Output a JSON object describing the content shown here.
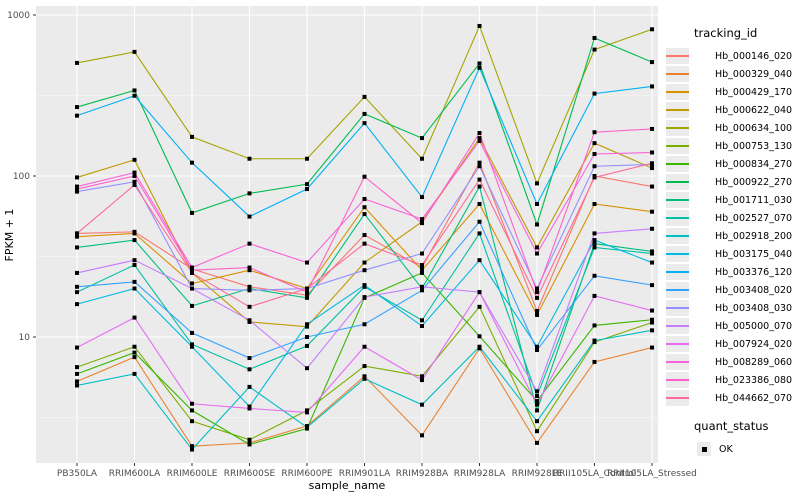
{
  "style": {
    "figure_bg": "#ffffff",
    "panel_bg": "#ebebeb",
    "grid_major_color": "#ffffff",
    "grid_minor_color": "#f7f7f7",
    "axis_text_color": "#4d4d4d",
    "axis_title_color": "#000000",
    "tick_mark_color": "#333333",
    "point_color": "#000000",
    "legend_key_bg": "#ebebeb"
  },
  "axes": {
    "x_title": "sample_name",
    "y_title": "FPKM + 1",
    "y_tick_labels": [
      "10",
      "100",
      "1000"
    ],
    "y_tick_values": [
      10,
      100,
      1000
    ],
    "y_minor_values": [
      3.162,
      31.62,
      316.2
    ],
    "y_scale": "log10"
  },
  "legend": {
    "tracking_title": "tracking_id",
    "quant_title": "quant_status",
    "quant_items": [
      {
        "label": "OK"
      }
    ]
  },
  "chart_data": {
    "type": "line",
    "title": "",
    "xlabel": "sample_name",
    "ylabel": "FPKM + 1",
    "y_scale": "log10",
    "ylim": [
      1.65,
      1140
    ],
    "grid": true,
    "legend_position": "right",
    "marker": "black-square",
    "x_categories": [
      "PB350LA",
      "RRIM600LA",
      "RRIM600LE",
      "RRIM600SE",
      "RRIM600PE",
      "RRIM901LA",
      "RRIM928BA",
      "RRIM928LA",
      "RRIM928LE",
      "RRII105LA_Control",
      "RRII105LA_Stressed"
    ],
    "series": [
      {
        "name": "Hb_000146_020",
        "color": "#F8766D",
        "values": [
          44,
          45,
          26.5,
          20.5,
          18.2,
          43,
          27,
          121,
          14.5,
          100,
          86
        ]
      },
      {
        "name": "Hb_000329_040",
        "color": "#EA8331",
        "values": [
          5.3,
          7.5,
          2.1,
          2.2,
          2.8,
          5.7,
          2.45,
          8.5,
          2.2,
          7.0,
          8.6
        ]
      },
      {
        "name": "Hb_000429_170",
        "color": "#D89000",
        "values": [
          42,
          44,
          21.5,
          26,
          20,
          64,
          26,
          67,
          13.7,
          67,
          60
        ]
      },
      {
        "name": "Hb_000622_040",
        "color": "#C09B00",
        "values": [
          98,
          126,
          25,
          12.4,
          11.6,
          29,
          52,
          172,
          36,
          160,
          112
        ]
      },
      {
        "name": "Hb_000634_100",
        "color": "#A3A500",
        "values": [
          504,
          590,
          175,
          128,
          128,
          310,
          128,
          855,
          90,
          610,
          815
        ]
      },
      {
        "name": "Hb_000753_130",
        "color": "#7CAE00",
        "values": [
          6.5,
          8.7,
          3.0,
          2.3,
          3.5,
          6.6,
          5.7,
          15.4,
          2.6,
          9.3,
          12.3
        ]
      },
      {
        "name": "Hb_000834_270",
        "color": "#39B600",
        "values": [
          5.9,
          8.0,
          3.5,
          2.15,
          2.7,
          17.5,
          25,
          10.1,
          4.0,
          11.8,
          12.8
        ]
      },
      {
        "name": "Hb_000922_270",
        "color": "#00BB4E",
        "values": [
          268,
          340,
          59,
          78,
          89,
          243,
          172,
          500,
          50,
          720,
          510
        ]
      },
      {
        "name": "Hb_001711_030",
        "color": "#00BF7D",
        "values": [
          36,
          40,
          15.6,
          20,
          17.5,
          58,
          20,
          86,
          3.5,
          38,
          34
        ]
      },
      {
        "name": "Hb_002527_070",
        "color": "#00C1A3",
        "values": [
          19,
          28,
          9,
          6.3,
          8.8,
          20.5,
          12.7,
          44,
          4.3,
          36,
          33
        ]
      },
      {
        "name": "Hb_002918_200",
        "color": "#00BFC4",
        "values": [
          5.0,
          5.9,
          2.0,
          4.9,
          2.75,
          5.5,
          3.8,
          8.7,
          3.0,
          9.5,
          11
        ]
      },
      {
        "name": "Hb_003175_040",
        "color": "#00BAE0",
        "values": [
          16,
          20,
          8.7,
          3.7,
          12,
          21,
          11.7,
          30,
          8.7,
          40,
          29
        ]
      },
      {
        "name": "Hb_003376_120",
        "color": "#00B0F6",
        "values": [
          237,
          315,
          121,
          56,
          83,
          213,
          74,
          470,
          67,
          325,
          360
        ]
      },
      {
        "name": "Hb_003408_020",
        "color": "#35A2FF",
        "values": [
          20.5,
          22,
          10.6,
          7.4,
          10,
          12,
          19.5,
          52,
          8.3,
          24,
          21
        ]
      },
      {
        "name": "Hb_003408_030",
        "color": "#9590FF",
        "values": [
          80,
          92,
          20,
          19.5,
          20,
          26,
          33,
          115,
          20,
          115,
          118
        ]
      },
      {
        "name": "Hb_005000_070",
        "color": "#C77CFF",
        "values": [
          25,
          30,
          20,
          12.7,
          6.4,
          17.7,
          20.5,
          19,
          4.6,
          44,
          47
        ]
      },
      {
        "name": "Hb_007924_020",
        "color": "#E76BF3",
        "values": [
          8.6,
          13.2,
          3.85,
          3.6,
          3.4,
          8.7,
          5.4,
          19,
          3.8,
          18,
          14.6
        ]
      },
      {
        "name": "Hb_008289_060",
        "color": "#FA62DB",
        "values": [
          86,
          105,
          27,
          38,
          29,
          72,
          54,
          165,
          33,
          137,
          140
        ]
      },
      {
        "name": "Hb_023386_080",
        "color": "#FF61CC",
        "values": [
          83,
          100,
          26,
          27,
          19,
          99,
          51,
          185,
          19,
          187,
          196
        ]
      },
      {
        "name": "Hb_044662_070",
        "color": "#FF6A98",
        "values": [
          44,
          88,
          25,
          15.4,
          20,
          38,
          28,
          95,
          17.5,
          98,
          120
        ]
      }
    ]
  }
}
